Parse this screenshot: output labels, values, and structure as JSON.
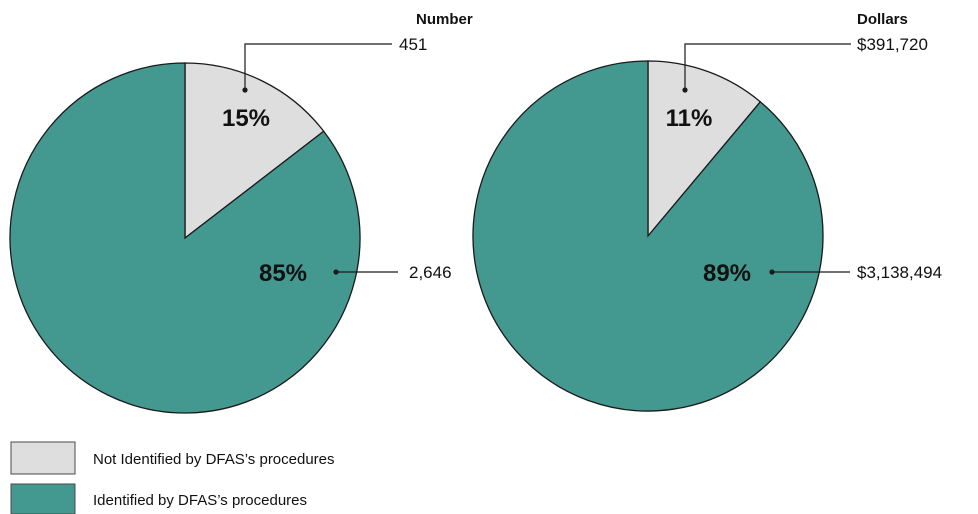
{
  "colors": {
    "not_identified": "#dedede",
    "identified": "#439890"
  },
  "legend": {
    "items": [
      {
        "label": "Not Identified by DFAS’s procedures",
        "color": "#dedede"
      },
      {
        "label": "Identified by DFAS’s procedures",
        "color": "#439890"
      }
    ]
  },
  "chart_data": [
    {
      "type": "pie",
      "title": "Number",
      "slices": [
        {
          "label": "Not Identified by DFAS’s procedures",
          "percent_label": "15%",
          "value": 451,
          "value_label": "451",
          "color": "#dedede"
        },
        {
          "label": "Identified by DFAS’s procedures",
          "percent_label": "85%",
          "value": 2646,
          "value_label": "2,646",
          "color": "#439890"
        }
      ],
      "legend_placement": "bottom-left"
    },
    {
      "type": "pie",
      "title": "Dollars",
      "slices": [
        {
          "label": "Not Identified by DFAS’s procedures",
          "percent_label": "11%",
          "value": 391720,
          "value_label": "$391,720",
          "color": "#dedede"
        },
        {
          "label": "Identified by DFAS’s procedures",
          "percent_label": "89%",
          "value": 3138494,
          "value_label": "$3,138,494",
          "color": "#439890"
        }
      ],
      "legend_placement": "bottom-left"
    }
  ]
}
